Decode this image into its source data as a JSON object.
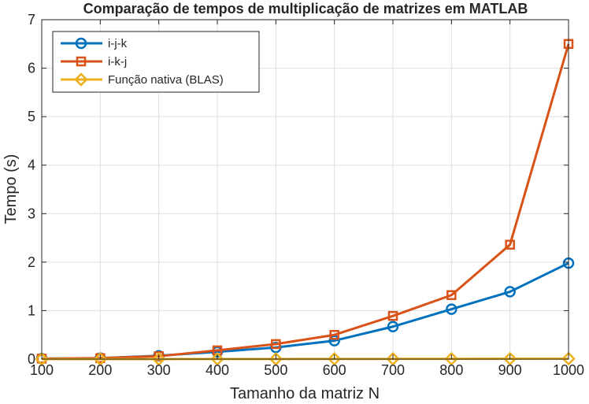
{
  "chart_data": {
    "type": "line",
    "title": "Comparação de tempos de multiplicação de matrizes em MATLAB",
    "xlabel": "Tamanho da matriz N",
    "ylabel": "Tempo (s)",
    "x": [
      100,
      200,
      300,
      400,
      500,
      600,
      700,
      800,
      900,
      1000
    ],
    "xlim": [
      100,
      1000
    ],
    "ylim": [
      0,
      7
    ],
    "xticks": [
      "100",
      "200",
      "300",
      "400",
      "500",
      "600",
      "700",
      "800",
      "900",
      "1000"
    ],
    "yticks": [
      "0",
      "1",
      "2",
      "3",
      "4",
      "5",
      "6",
      "7"
    ],
    "grid": true,
    "legend_position": "top-left",
    "series": [
      {
        "name": "i-j-k",
        "marker": "circle",
        "color": "#0072BD",
        "values": [
          0.01,
          0.02,
          0.07,
          0.15,
          0.24,
          0.38,
          0.67,
          1.03,
          1.39,
          1.98
        ]
      },
      {
        "name": "i-k-j",
        "marker": "square",
        "color": "#D95319",
        "values": [
          0.01,
          0.02,
          0.06,
          0.18,
          0.31,
          0.5,
          0.89,
          1.32,
          2.36,
          6.5
        ]
      },
      {
        "name": "Função nativa (BLAS)",
        "marker": "diamond",
        "color": "#EDB120",
        "values": [
          0.001,
          0.001,
          0.001,
          0.002,
          0.003,
          0.004,
          0.005,
          0.006,
          0.008,
          0.01
        ]
      }
    ]
  }
}
